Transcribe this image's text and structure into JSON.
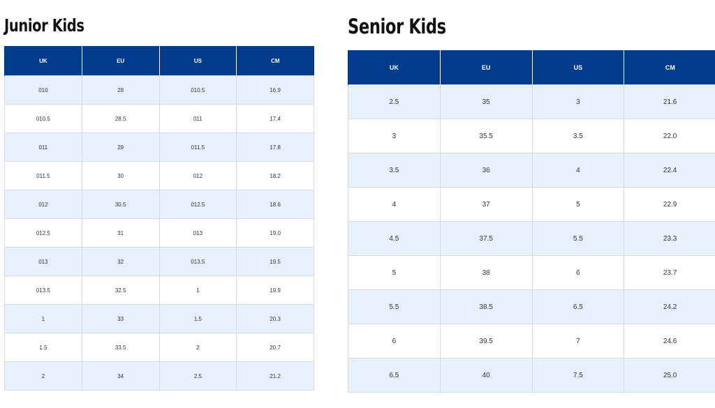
{
  "junior": {
    "title": "Junior Kids",
    "headers": [
      "UK",
      "EU",
      "US",
      "CM"
    ],
    "rows": [
      [
        "010",
        "28",
        "010.5",
        "16.9"
      ],
      [
        "010.5",
        "28.5",
        "011",
        "17.4"
      ],
      [
        "011",
        "29",
        "011.5",
        "17.8"
      ],
      [
        "011.5",
        "30",
        "012",
        "18.2"
      ],
      [
        "012",
        "30.5",
        "012.5",
        "18.6"
      ],
      [
        "012.5",
        "31",
        "013",
        "19.0"
      ],
      [
        "013",
        "32",
        "013.5",
        "19.5"
      ],
      [
        "013.5",
        "32.5",
        "1",
        "19.9"
      ],
      [
        "1",
        "33",
        "1.5",
        "20.3"
      ],
      [
        "1.5",
        "33.5",
        "2",
        "20.7"
      ],
      [
        "2",
        "34",
        "2.5",
        "21.2"
      ]
    ]
  },
  "senior": {
    "title": "Senior Kids",
    "headers": [
      "UK",
      "EU",
      "US",
      "CM"
    ],
    "rows": [
      [
        "2.5",
        "35",
        "3",
        "21.6"
      ],
      [
        "3",
        "35.5",
        "3.5",
        "22.0"
      ],
      [
        "3.5",
        "36",
        "4",
        "22.4"
      ],
      [
        "4",
        "37",
        "5",
        "22.9"
      ],
      [
        "4.5",
        "37.5",
        "5.5",
        "23.3"
      ],
      [
        "5",
        "38",
        "6",
        "23.7"
      ],
      [
        "5.5",
        "38.5",
        "6.5",
        "24.2"
      ],
      [
        "6",
        "39.5",
        "7",
        "24.6"
      ],
      [
        "6.5",
        "40",
        "7.5",
        "25.0"
      ]
    ]
  },
  "colors": {
    "header_bg": "#003b8e",
    "header_text": "#ffffff",
    "stripe_bg": "#e6f1fb",
    "row_bg": "#ffffff",
    "grid_line": "#d6d9dd"
  }
}
